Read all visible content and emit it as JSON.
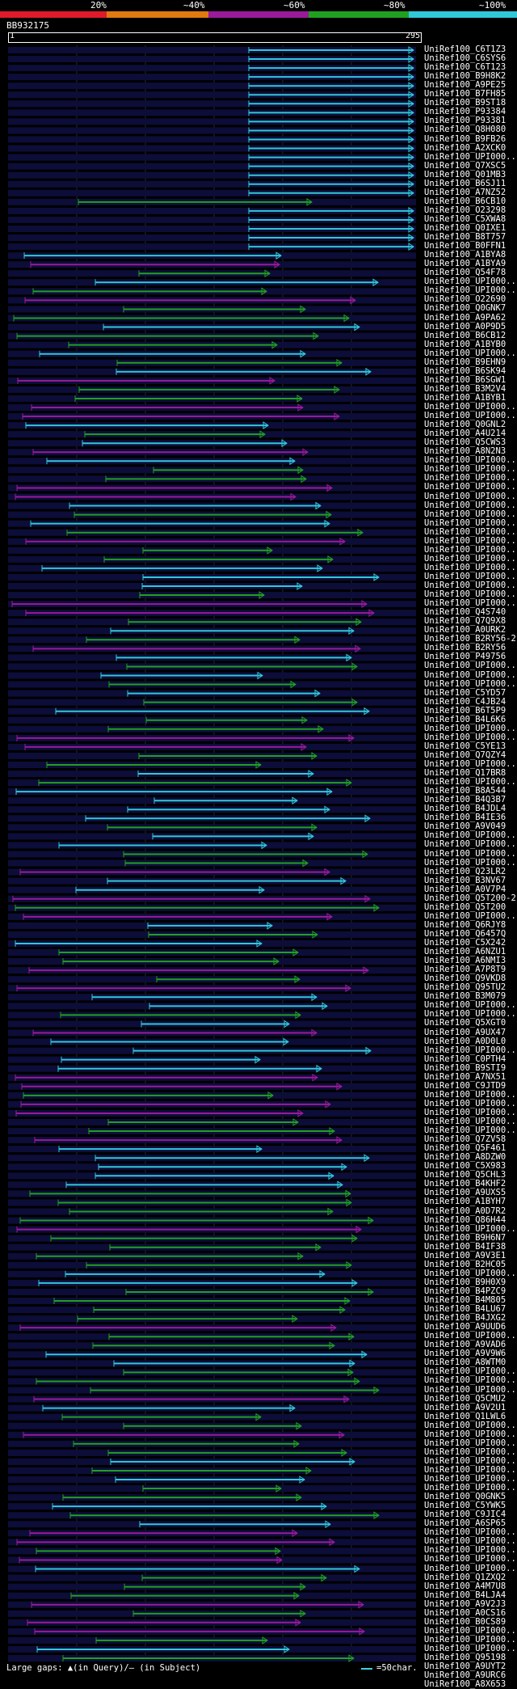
{
  "colors": {
    "c20": "#e01a2a",
    "c40": "#e07a10",
    "c60": "#9a1a9a",
    "c80": "#20a020",
    "c100": "#30c8d8",
    "grid": "#203020",
    "row": "#0d0d3a"
  },
  "legend": {
    "p20": "20%",
    "p40": "~40%",
    "p60": "~60%",
    "p80": "~80%",
    "p100": "~100%"
  },
  "query": {
    "id": "BB932175",
    "start": "1",
    "end": "295"
  },
  "footer": {
    "gaps": "Large gaps: ▲(in Query)/– (in Subject)",
    "scale": "=50char."
  },
  "hits": [
    "UniRef100_C6T1Z3",
    "UniRef100_C6SYS6",
    "UniRef100_C6T123",
    "UniRef100_B9H8K2",
    "UniRef100_A9PE25",
    "UniRef100_B7FH85",
    "UniRef100_B9ST18",
    "UniRef100_P93384",
    "UniRef100_P93381",
    "UniRef100_Q8H080",
    "UniRef100_B9FB26",
    "UniRef100_A2XCK0",
    "UniRef100_UPI000..",
    "UniRef100_Q7XSC5",
    "UniRef100_Q01MB3",
    "UniRef100_B6SJ11",
    "UniRef100_A7NZ52",
    "UniRef100_B6CB10",
    "UniRef100_O23298",
    "UniRef100_C5XWA8",
    "UniRef100_Q0IXE1",
    "UniRef100_B8T757",
    "UniRef100_B0FFN1",
    "UniRef100_A1BYA8",
    "UniRef100_A1BYA9",
    "UniRef100_Q54F78",
    "UniRef100_UPI000..",
    "UniRef100_UPI000..",
    "UniRef100_O22690",
    "UniRef100_Q0GNK7",
    "UniRef100_A9PA62",
    "UniRef100_A0P9D5",
    "UniRef100_B6CB12",
    "UniRef100_A1BYB0",
    "UniRef100_UPI000..",
    "UniRef100_B9EHN9",
    "UniRef100_B6SK94",
    "UniRef100_B6SGW1",
    "UniRef100_B3M2V4",
    "UniRef100_A1BYB1",
    "UniRef100_UPI000..",
    "UniRef100_UPI000..",
    "UniRef100_Q0GNL2",
    "UniRef100_A4U214",
    "UniRef100_Q5CWS3",
    "UniRef100_A8N2N3",
    "UniRef100_UPI000..",
    "UniRef100_UPI000..",
    "UniRef100_UPI000..",
    "UniRef100_UPI000..",
    "UniRef100_UPI000..",
    "UniRef100_UPI000..",
    "UniRef100_UPI000..",
    "UniRef100_UPI000..",
    "UniRef100_UPI000..",
    "UniRef100_UPI000..",
    "UniRef100_UPI000..",
    "UniRef100_UPI000..",
    "UniRef100_UPI000..",
    "UniRef100_UPI000..",
    "UniRef100_UPI000..",
    "UniRef100_UPI000..",
    "UniRef100_UPI000..",
    "UniRef100_Q4S740",
    "UniRef100_Q7Q9X8",
    "UniRef100_A0URK2",
    "UniRef100_B2RY56-2",
    "UniRef100_B2RY56",
    "UniRef100_P49756",
    "UniRef100_UPI000..",
    "UniRef100_UPI000..",
    "UniRef100_UPI000..",
    "UniRef100_C5YD57",
    "UniRef100_C4JB24",
    "UniRef100_B6T5P9",
    "UniRef100_B4L6K6",
    "UniRef100_UPI000..",
    "UniRef100_UPI000..",
    "UniRef100_C5YE13",
    "UniRef100_Q7QZY4",
    "UniRef100_UPI000..",
    "UniRef100_Q17BR8",
    "UniRef100_UPI000..",
    "UniRef100_B8A544",
    "UniRef100_B4Q3B7",
    "UniRef100_B4JDL4",
    "UniRef100_B4IE36",
    "UniRef100_A9V049",
    "UniRef100_UPI000..",
    "UniRef100_UPI000..",
    "UniRef100_UPI000..",
    "UniRef100_UPI000..",
    "UniRef100_Q23LR2",
    "UniRef100_B3NV67",
    "UniRef100_A0V7P4",
    "UniRef100_Q5T200-2",
    "UniRef100_Q5T200",
    "UniRef100_UPI000..",
    "UniRef100_Q6RJY8",
    "UniRef100_Q6457Q",
    "UniRef100_C5X242",
    "UniRef100_A6NZU1",
    "UniRef100_A6NMI3",
    "UniRef100_A7P8T9",
    "UniRef100_Q9VKD8",
    "UniRef100_Q95TU2",
    "UniRef100_B3M079",
    "UniRef100_UPI000..",
    "UniRef100_UPI000..",
    "UniRef100_Q5XGT0",
    "UniRef100_A9UX47",
    "UniRef100_A0D0L0",
    "UniRef100_UPI000..",
    "UniRef100_C0PTH4",
    "UniRef100_B9STI9",
    "UniRef100_A7NX51",
    "UniRef100_C9JTD9",
    "UniRef100_UPI000..",
    "UniRef100_UPI000..",
    "UniRef100_UPI000..",
    "UniRef100_UPI000..",
    "UniRef100_UPI000..",
    "UniRef100_Q7ZV58",
    "UniRef100_Q5F461",
    "UniRef100_A8DZW0",
    "UniRef100_C5X983",
    "UniRef100_Q5CHL3",
    "UniRef100_B4KHF2",
    "UniRef100_A9UXS5",
    "UniRef100_A1BYH7",
    "UniRef100_A0D7R2",
    "UniRef100_Q86H44",
    "UniRef100_UPI000..",
    "UniRef100_B9H6N7",
    "UniRef100_B4IF38",
    "UniRef100_A9V3E1",
    "UniRef100_B2HC05",
    "UniRef100_UPI000..",
    "UniRef100_B9H0X9",
    "UniRef100_B4PZC9",
    "UniRef100_B4M805",
    "UniRef100_B4LU67",
    "UniRef100_B4JXG2",
    "UniRef100_A9UUD6",
    "UniRef100_UPI000..",
    "UniRef100_A9VAD6",
    "UniRef100_A9V9W6",
    "UniRef100_A8WTM0",
    "UniRef100_UPI000..",
    "UniRef100_UPI000..",
    "UniRef100_UPI000..",
    "UniRef100_Q5CMU2",
    "UniRef100_A9V2U1",
    "UniRef100_Q1LWL6",
    "UniRef100_UPI000..",
    "UniRef100_UPI000..",
    "UniRef100_UPI000..",
    "UniRef100_UPI000..",
    "UniRef100_UPI000..",
    "UniRef100_UPI000..",
    "UniRef100_UPI000..",
    "UniRef100_UPI000..",
    "UniRef100_Q0GNK5",
    "UniRef100_C5YWK5",
    "UniRef100_C9JIC4",
    "UniRef100_A6SP65",
    "UniRef100_UPI000..",
    "UniRef100_UPI000..",
    "UniRef100_UPI000..",
    "UniRef100_UPI000..",
    "UniRef100_UPI000..",
    "UniRef100_Q1ZXQ2",
    "UniRef100_A4M7U8",
    "UniRef100_B4LJA4",
    "UniRef100_A9V2J3",
    "UniRef100_A0CS16",
    "UniRef100_B0CS89",
    "UniRef100_UPI000..",
    "UniRef100_UPI000..",
    "UniRef100_UPI000..",
    "UniRef100_Q95198",
    "UniRef100_A9UYT2",
    "UniRef100_A9URC6",
    "UniRef100_A8X653"
  ]
}
